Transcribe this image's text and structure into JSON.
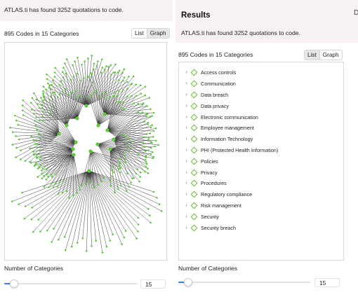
{
  "left_panel": {
    "found_text": "ATLAS.ti has found 3252 quotations to code.",
    "codes_title": "895 Codes in 15 Categories",
    "view_toggle": {
      "list_label": "List",
      "graph_label": "Graph",
      "selected": "Graph"
    },
    "num_categories_label": "Number of Categories",
    "num_categories_value": "15",
    "slider_fraction": 0.04
  },
  "right_panel": {
    "results_title": "Results",
    "found_text": "ATLAS.ti has found 3252 quotations to code.",
    "codes_title": "895 Codes in 15 Categories",
    "view_toggle": {
      "list_label": "List",
      "graph_label": "Graph",
      "selected": "List"
    },
    "categories": [
      "Access controls",
      "Communication",
      "Data breach",
      "Data privacy",
      "Electronic communication",
      "Employee management",
      "Information Technology",
      "PHI (Protected Health Information)",
      "Policies",
      "Privacy",
      "Procedures",
      "Regulatory compliance",
      "Risk management",
      "Security",
      "Security breach"
    ],
    "num_categories_label": "Number of Categories",
    "num_categories_value": "15",
    "slider_fraction": 0.04,
    "edge_fragment": "D"
  },
  "colors": {
    "accent": "#3b7de0",
    "node_green": "#5cc93a",
    "edge_dark": "#2b2b2b",
    "header_band": "#f7f1f3"
  },
  "icons": {
    "chevron": "chevron-right-icon",
    "category": "diamond-icon"
  }
}
